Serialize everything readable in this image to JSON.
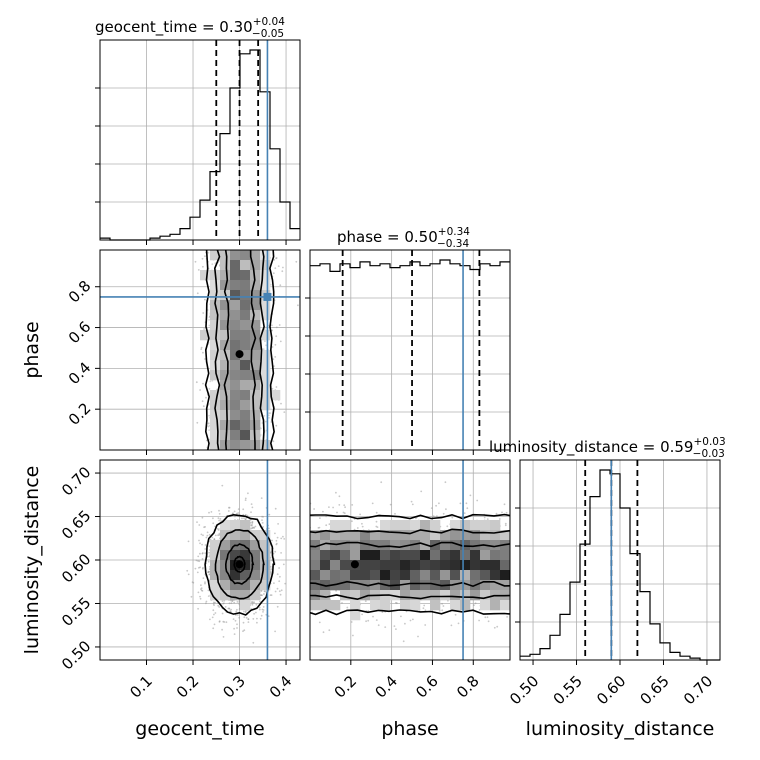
{
  "chart_data": {
    "type": "corner",
    "parameters": [
      {
        "name": "geocent_time",
        "range": [
          0.0,
          0.43
        ],
        "ticks": [
          0.1,
          0.2,
          0.3,
          0.4
        ],
        "tick_labels": [
          "0.1",
          "0.2",
          "0.3",
          "0.4"
        ],
        "injection": 0.36,
        "quantiles": [
          0.25,
          0.3,
          0.34
        ],
        "title_param": "geocent_time",
        "title_value": "0.30",
        "title_plus": "+0.04",
        "title_minus": "−0.05"
      },
      {
        "name": "phase",
        "range": [
          0.0,
          0.98
        ],
        "ticks": [
          0.2,
          0.4,
          0.6,
          0.8
        ],
        "tick_labels": [
          "0.2",
          "0.4",
          "0.6",
          "0.8"
        ],
        "injection": 0.75,
        "quantiles": [
          0.16,
          0.5,
          0.83
        ],
        "title_param": "phase",
        "title_value": "0.50",
        "title_plus": "+0.34",
        "title_minus": "−0.34"
      },
      {
        "name": "luminosity_distance",
        "range": [
          0.485,
          0.715
        ],
        "ticks": [
          0.5,
          0.55,
          0.6,
          0.65,
          0.7
        ],
        "tick_labels": [
          "0.50",
          "0.55",
          "0.60",
          "0.65",
          "0.70"
        ],
        "injection": 0.59,
        "quantiles": [
          0.56,
          0.59,
          0.62
        ],
        "title_param": "luminosity_distance",
        "title_value": "0.59",
        "title_plus": "+0.03",
        "title_minus": "−0.03"
      }
    ],
    "histograms": [
      {
        "param": "geocent_time",
        "bin_start": 0.0,
        "bin_width": 0.0215,
        "values": [
          0.01,
          0.0,
          0.0,
          0.0,
          0.0,
          0.01,
          0.02,
          0.03,
          0.06,
          0.12,
          0.21,
          0.36,
          0.56,
          0.8,
          0.98,
          1.0,
          0.78,
          0.48,
          0.2,
          0.06
        ]
      },
      {
        "param": "phase",
        "bin_start": 0.0,
        "bin_width": 0.049,
        "values": [
          0.97,
          0.98,
          0.94,
          0.98,
          0.96,
          0.99,
          0.97,
          0.98,
          0.96,
          0.97,
          0.99,
          0.97,
          0.98,
          1.0,
          0.98,
          0.97,
          0.95,
          0.98,
          0.97,
          0.99
        ]
      },
      {
        "param": "luminosity_distance",
        "bin_start": 0.485,
        "bin_width": 0.0115,
        "values": [
          0.02,
          0.03,
          0.06,
          0.13,
          0.24,
          0.41,
          0.61,
          0.86,
          1.0,
          0.98,
          0.8,
          0.56,
          0.36,
          0.19,
          0.09,
          0.04,
          0.02,
          0.01,
          0.0,
          0.0
        ]
      }
    ],
    "posterior": {
      "geocent_time": {
        "mean": 0.3,
        "std": 0.032
      },
      "phase": {
        "low": 0.0,
        "high": 0.98
      },
      "luminosity_distance": {
        "mean": 0.595,
        "std": 0.025
      }
    },
    "injection_color": "#4682b4",
    "grid": true
  }
}
